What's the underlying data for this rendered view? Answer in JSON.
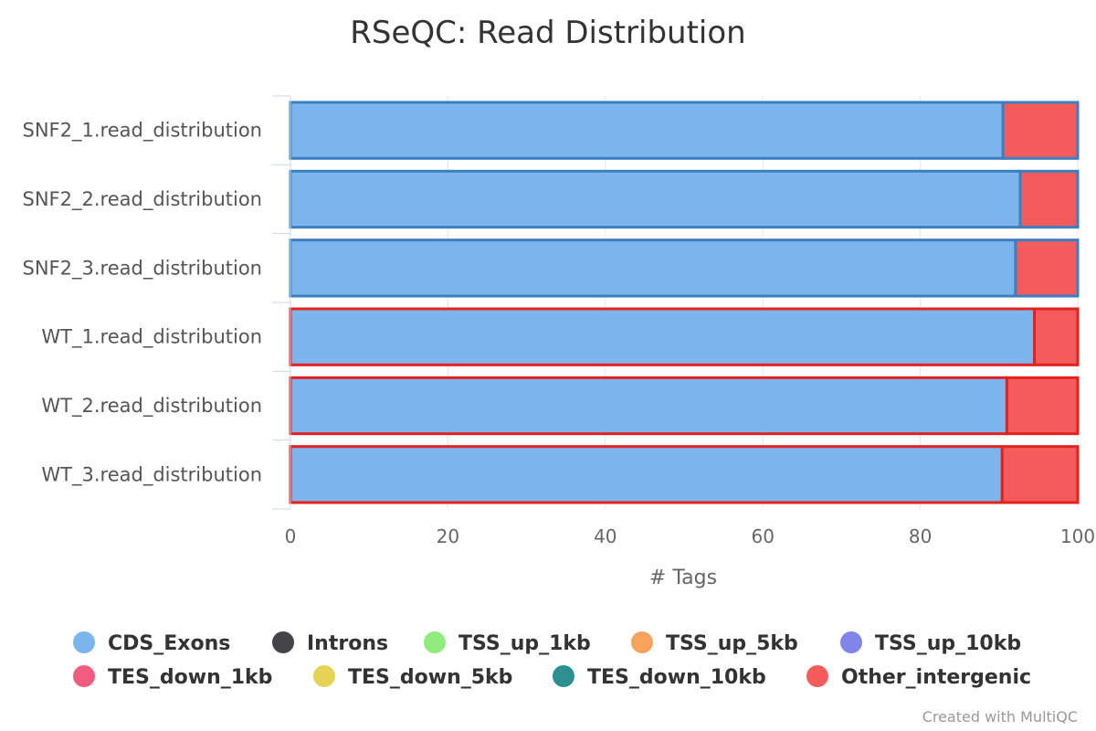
{
  "chart_data": {
    "type": "bar",
    "orientation": "horizontal",
    "stacked": true,
    "title": "RSeQC: Read Distribution",
    "xlabel": "# Tags",
    "xlim": [
      0,
      100
    ],
    "xticks": [
      0,
      20,
      40,
      60,
      80,
      100
    ],
    "grid": true,
    "legend_position": "bottom",
    "categories": [
      "SNF2_1.read_distribution",
      "SNF2_2.read_distribution",
      "SNF2_3.read_distribution",
      "WT_1.read_distribution",
      "WT_2.read_distribution",
      "WT_3.read_distribution"
    ],
    "category_highlight": [
      "#3a7fc1",
      "#3a7fc1",
      "#3a7fc1",
      "#e3221e",
      "#e3221e",
      "#e3221e"
    ],
    "series": [
      {
        "name": "CDS_Exons",
        "color": "#7cb5ec",
        "values": [
          90.5,
          92.7,
          92.1,
          94.5,
          91.0,
          90.4
        ]
      },
      {
        "name": "Introns",
        "color": "#434348",
        "values": [
          0,
          0,
          0,
          0,
          0,
          0
        ]
      },
      {
        "name": "TSS_up_1kb",
        "color": "#90ed7d",
        "values": [
          0,
          0,
          0,
          0,
          0,
          0
        ]
      },
      {
        "name": "TSS_up_5kb",
        "color": "#f7a35c",
        "values": [
          0,
          0,
          0,
          0,
          0,
          0
        ]
      },
      {
        "name": "TSS_up_10kb",
        "color": "#8085e9",
        "values": [
          0,
          0,
          0,
          0,
          0,
          0
        ]
      },
      {
        "name": "TES_down_1kb",
        "color": "#f15c80",
        "values": [
          0,
          0,
          0,
          0,
          0,
          0
        ]
      },
      {
        "name": "TES_down_5kb",
        "color": "#e4d354",
        "values": [
          0,
          0,
          0,
          0,
          0,
          0
        ]
      },
      {
        "name": "TES_down_10kb",
        "color": "#2b908f",
        "values": [
          0,
          0,
          0,
          0,
          0,
          0
        ]
      },
      {
        "name": "Other_intergenic",
        "color": "#f45b5b",
        "values": [
          9.5,
          7.3,
          7.9,
          5.5,
          9.0,
          9.6
        ]
      }
    ]
  },
  "credit": "Created with MultiQC"
}
